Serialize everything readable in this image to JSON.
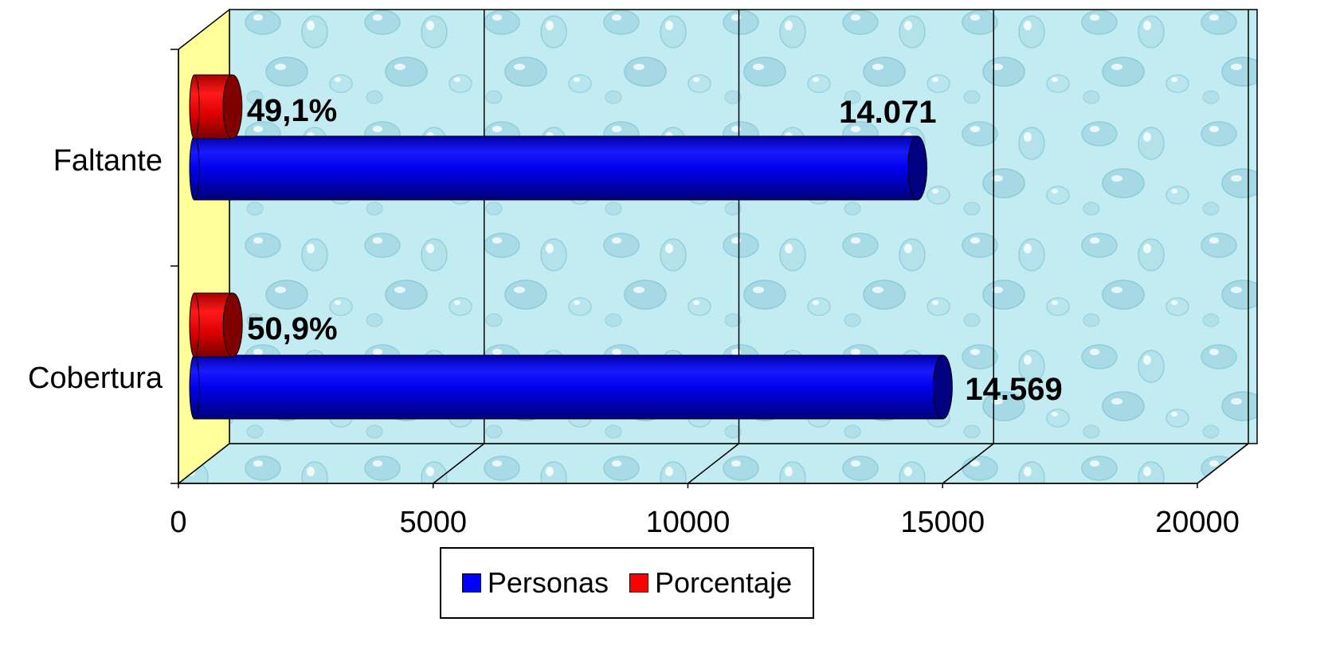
{
  "chart_data": {
    "type": "bar",
    "orientation": "horizontal",
    "style": "3d-cylinder",
    "categories": [
      "Faltante",
      "Cobertura"
    ],
    "series": [
      {
        "name": "Personas",
        "values": [
          14071,
          14569
        ],
        "labels": [
          "14.071",
          "14.569"
        ],
        "color": "#0000FF"
      },
      {
        "name": "Porcentaje",
        "values": [
          49.1,
          50.9
        ],
        "labels": [
          "49,1%",
          "50,9%"
        ],
        "color": "#FF0000"
      }
    ],
    "xlim": [
      0,
      20000
    ],
    "xticks": [
      "0",
      "5000",
      "10000",
      "15000",
      "20000"
    ],
    "grid": true,
    "legend": "bottom",
    "colors": {
      "wall": "#bfe8f0",
      "side_wall": "#ffff99"
    }
  }
}
